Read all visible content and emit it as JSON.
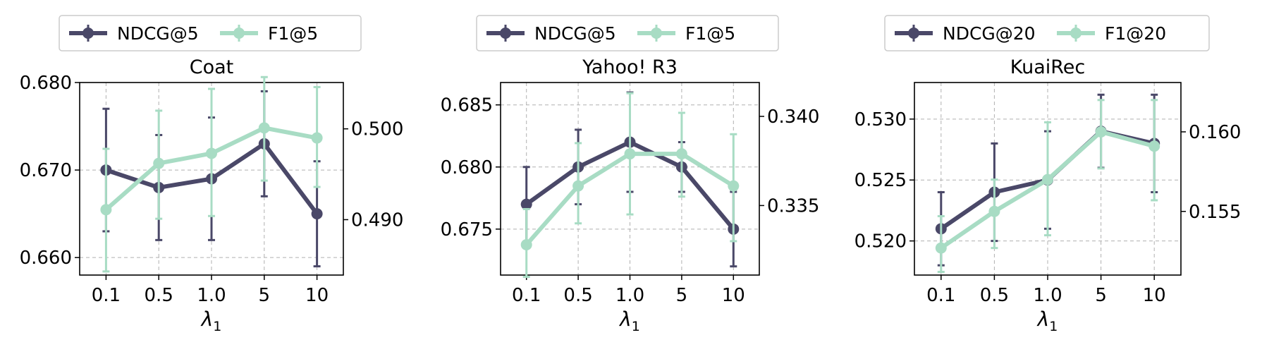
{
  "colors": {
    "primary": "#4a4868",
    "secondary": "#a8dcc4",
    "grid": "#b0b0b0"
  },
  "chart_data": [
    {
      "type": "line",
      "title": "Coat",
      "xlabel": "λ1",
      "x_ticks": [
        "0.1",
        "0.5",
        "1.0",
        "5",
        "10"
      ],
      "y_left": {
        "ticks": [
          "0.660",
          "0.670",
          "0.680"
        ],
        "range": [
          0.658,
          0.68
        ]
      },
      "y_right": {
        "ticks": [
          "0.490",
          "0.500"
        ],
        "range": [
          0.4839,
          0.5051
        ]
      },
      "legend_position": "top-center",
      "grid": true,
      "series": [
        {
          "name": "NDCG@5",
          "axis": "left",
          "values": [
            0.67,
            0.668,
            0.669,
            0.673,
            0.665
          ],
          "err_low": [
            0.663,
            0.662,
            0.662,
            0.667,
            0.659
          ],
          "err_high": [
            0.677,
            0.674,
            0.676,
            0.679,
            0.671
          ]
        },
        {
          "name": "F1@5",
          "axis": "right",
          "values": [
            0.4911,
            0.4962,
            0.4973,
            0.5001,
            0.499
          ],
          "err_low": [
            0.4843,
            0.4901,
            0.4904,
            0.4943,
            0.4936
          ],
          "err_high": [
            0.4978,
            0.502,
            0.5044,
            0.5057,
            0.5046
          ]
        }
      ]
    },
    {
      "type": "line",
      "title": "Yahoo! R3",
      "xlabel": "λ1",
      "x_ticks": [
        "0.1",
        "0.5",
        "1.0",
        "5",
        "10"
      ],
      "y_left": {
        "ticks": [
          "0.675",
          "0.680",
          "0.685"
        ],
        "range": [
          0.6713,
          0.6868
        ]
      },
      "y_right": {
        "ticks": [
          "0.335",
          "0.340"
        ],
        "range": [
          0.3311,
          0.3419
        ]
      },
      "legend_position": "top-center",
      "grid": true,
      "series": [
        {
          "name": "NDCG@5",
          "axis": "left",
          "values": [
            0.677,
            0.68,
            0.682,
            0.68,
            0.675
          ],
          "err_low": [
            0.674,
            0.677,
            0.678,
            0.678,
            0.672
          ],
          "err_high": [
            0.68,
            0.683,
            0.686,
            0.682,
            0.678
          ]
        },
        {
          "name": "F1@5",
          "axis": "right",
          "values": [
            0.3328,
            0.3361,
            0.3379,
            0.3379,
            0.3361
          ],
          "err_low": [
            0.331,
            0.334,
            0.3345,
            0.3355,
            0.333
          ],
          "err_high": [
            0.3348,
            0.3385,
            0.3413,
            0.3402,
            0.339
          ]
        }
      ]
    },
    {
      "type": "line",
      "title": "KuaiRec",
      "xlabel": "λ1",
      "x_ticks": [
        "0.1",
        "0.5",
        "1.0",
        "5",
        "10"
      ],
      "y_left": {
        "ticks": [
          "0.520",
          "0.525",
          "0.530"
        ],
        "range": [
          0.5172,
          0.533
        ]
      },
      "y_right": {
        "ticks": [
          "0.155",
          "0.160"
        ],
        "range": [
          0.151,
          0.1631
        ]
      },
      "legend_position": "top-center",
      "grid": true,
      "series": [
        {
          "name": "NDCG@20",
          "axis": "left",
          "values": [
            0.521,
            0.524,
            0.525,
            0.529,
            0.528
          ],
          "err_low": [
            0.518,
            0.52,
            0.521,
            0.526,
            0.524
          ],
          "err_high": [
            0.524,
            0.528,
            0.529,
            0.532,
            0.532
          ]
        },
        {
          "name": "F1@20",
          "axis": "right",
          "values": [
            0.1527,
            0.155,
            0.157,
            0.16,
            0.1591
          ],
          "err_low": [
            0.1512,
            0.1527,
            0.1535,
            0.1577,
            0.1557
          ],
          "err_high": [
            0.1547,
            0.157,
            0.1606,
            0.162,
            0.162
          ]
        }
      ]
    }
  ]
}
